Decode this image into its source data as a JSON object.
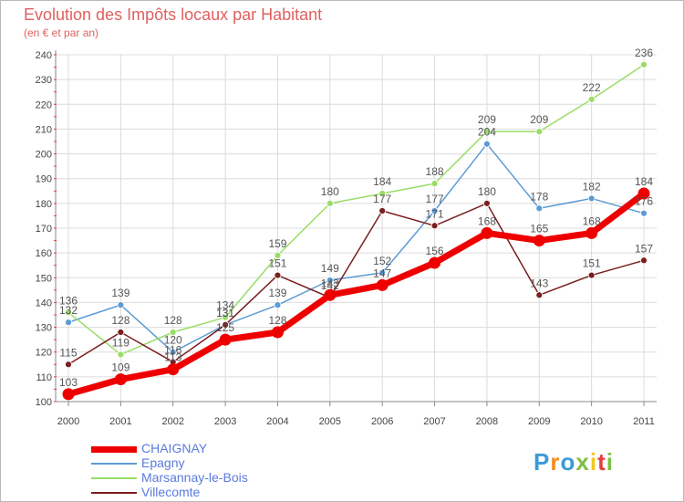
{
  "chart_data": {
    "type": "line",
    "title": "Evolution des Impôts locaux par Habitant",
    "subtitle": "(en € et par an)",
    "xlabel": "",
    "ylabel": "",
    "categories": [
      "2000",
      "2001",
      "2002",
      "2003",
      "2004",
      "2005",
      "2006",
      "2007",
      "2008",
      "2009",
      "2010",
      "2011"
    ],
    "ylim": [
      100,
      240
    ],
    "yticks": [
      100,
      110,
      120,
      130,
      140,
      150,
      160,
      170,
      180,
      190,
      200,
      210,
      220,
      230,
      240
    ],
    "legend_position": "bottom-left",
    "series": [
      {
        "name": "CHAIGNAY",
        "color": "#ee0000",
        "values": [
          103,
          109,
          113,
          125,
          128,
          143,
          147,
          156,
          168,
          165,
          168,
          184
        ]
      },
      {
        "name": "Epagny",
        "color": "#5b9bd5",
        "values": [
          132,
          139,
          120,
          131,
          139,
          149,
          152,
          177,
          204,
          178,
          182,
          176
        ]
      },
      {
        "name": "Marsannay-le-Bois",
        "color": "#99dd66",
        "values": [
          136,
          119,
          128,
          134,
          159,
          180,
          184,
          188,
          209,
          209,
          222,
          236
        ]
      },
      {
        "name": "Villecomte",
        "color": "#7a1e1e",
        "values": [
          115,
          128,
          116,
          131,
          151,
          142,
          177,
          171,
          180,
          143,
          151,
          157
        ]
      }
    ]
  },
  "logo": {
    "text": "Proxiti",
    "letter_colors": [
      "#3b9bd8",
      "#f28c1e",
      "#3b9bd8",
      "#7cc142",
      "#f2c41e",
      "#e63c3c",
      "#7cc142"
    ]
  }
}
